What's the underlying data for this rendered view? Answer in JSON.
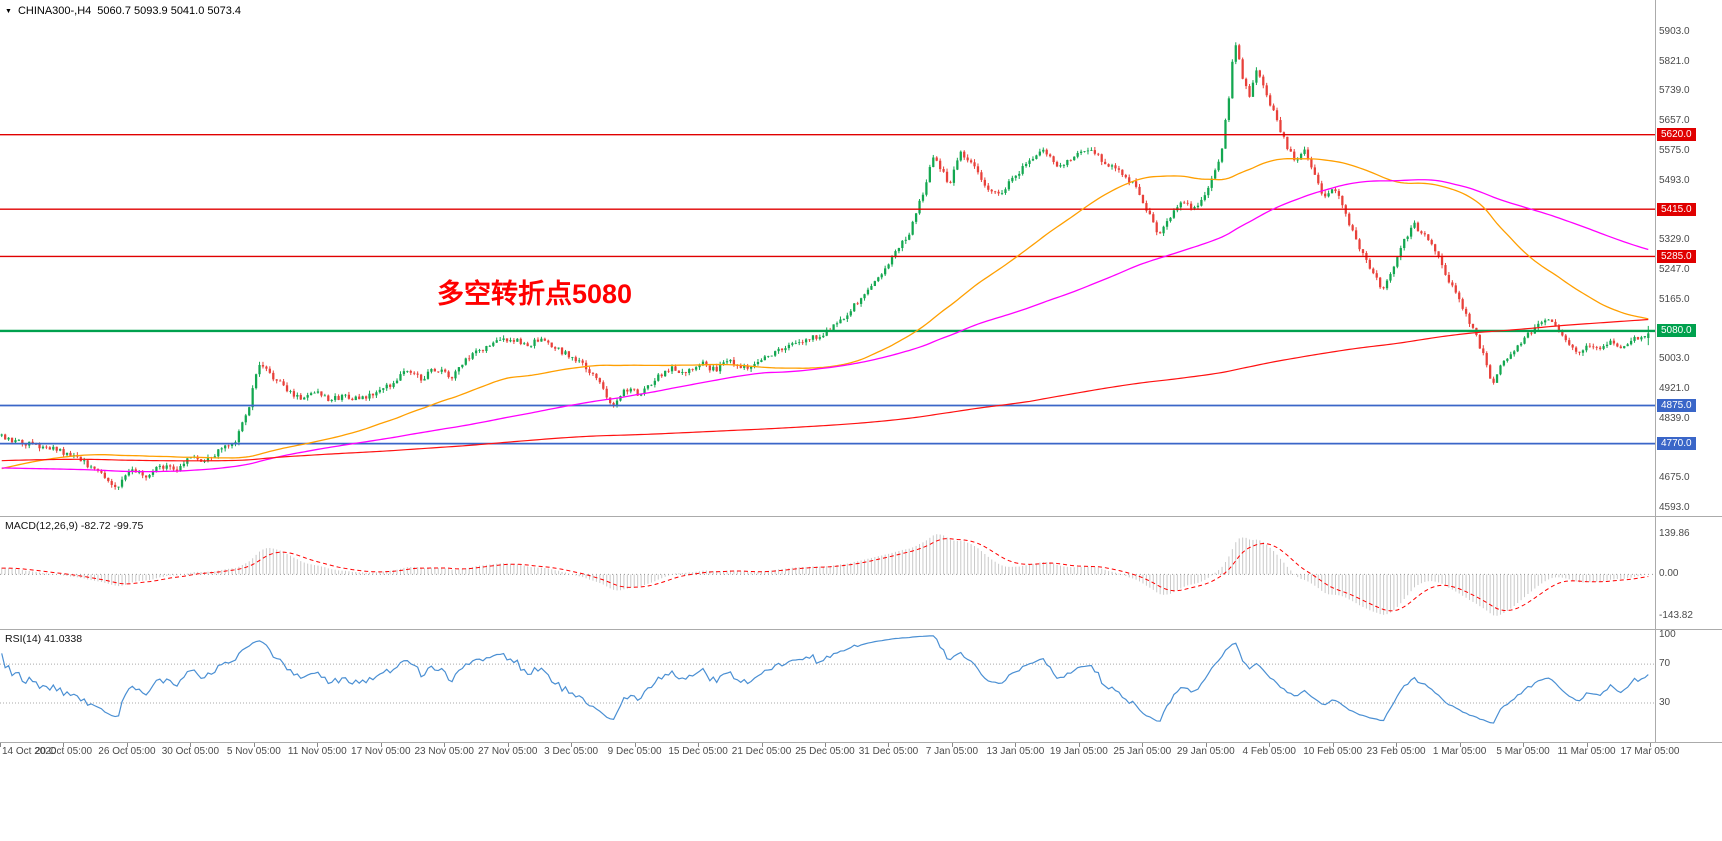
{
  "header": {
    "collapse_icon": "▼",
    "symbol": "CHINA300-,H4",
    "ohlc_line": "5060.7 5093.9 5041.0 5073.4"
  },
  "chart_data": {
    "type": "candlestick",
    "title": "CHINA300- H4 candlestick chart with MACD and RSI panels",
    "symbol": "CHINA300-",
    "timeframe": "H4",
    "last_bar": {
      "open": 5060.7,
      "high": 5093.9,
      "low": 5041.0,
      "close": 5073.4
    },
    "annotation": {
      "text": "多空转折点5080",
      "color": "#ff0000"
    },
    "grid": false,
    "price_axis": {
      "side": "right",
      "min": 4571,
      "max": 5985,
      "tick_labels": [
        "5903.0",
        "5821.0",
        "5739.0",
        "5657.0",
        "5575.0",
        "5493.0",
        "5411.0",
        "5329.0",
        "5247.0",
        "5165.0",
        "5083.0",
        "5003.0",
        "4921.0",
        "4839.0",
        "4757.0",
        "4675.0",
        "4593.0"
      ]
    },
    "horizontal_lines": [
      {
        "value": 5620.0,
        "label": "5620.0",
        "color": "#e00000",
        "width": 1.4
      },
      {
        "value": 5415.0,
        "label": "5415.0",
        "color": "#e00000",
        "width": 1.4
      },
      {
        "value": 5285.0,
        "label": "5285.0",
        "color": "#e00000",
        "width": 1.4
      },
      {
        "value": 5080.0,
        "label": "5080.0",
        "color": "#00a14e",
        "width": 2.4
      },
      {
        "value": 4875.0,
        "label": "4875.0",
        "color": "#3a66c8",
        "width": 1.8
      },
      {
        "value": 4770.0,
        "label": "4770.0",
        "color": "#3a66c8",
        "width": 1.8
      }
    ],
    "time_axis": {
      "labels": [
        "14 Oct 2020",
        "20 Oct 05:00",
        "26 Oct 05:00",
        "30 Oct 05:00",
        "5 Nov 05:00",
        "11 Nov 05:00",
        "17 Nov 05:00",
        "23 Nov 05:00",
        "27 Nov 05:00",
        "3 Dec 05:00",
        "9 Dec 05:00",
        "15 Dec 05:00",
        "21 Dec 05:00",
        "25 Dec 05:00",
        "31 Dec 05:00",
        "7 Jan 05:00",
        "13 Jan 05:00",
        "19 Jan 05:00",
        "25 Jan 05:00",
        "29 Jan 05:00",
        "4 Feb 05:00",
        "10 Feb 05:00",
        "23 Feb 05:00",
        "1 Mar 05:00",
        "5 Mar 05:00",
        "11 Mar 05:00",
        "17 Mar 05:00"
      ]
    },
    "approx_bar_count": 480,
    "price_path": [
      [
        0.0,
        4788
      ],
      [
        0.018,
        4766
      ],
      [
        0.033,
        4753
      ],
      [
        0.048,
        4725
      ],
      [
        0.061,
        4684
      ],
      [
        0.07,
        4648
      ],
      [
        0.079,
        4698
      ],
      [
        0.088,
        4676
      ],
      [
        0.097,
        4711
      ],
      [
        0.106,
        4692
      ],
      [
        0.115,
        4739
      ],
      [
        0.124,
        4720
      ],
      [
        0.133,
        4753
      ],
      [
        0.142,
        4780
      ],
      [
        0.15,
        4870
      ],
      [
        0.156,
        4986
      ],
      [
        0.164,
        4959
      ],
      [
        0.173,
        4917
      ],
      [
        0.182,
        4895
      ],
      [
        0.191,
        4917
      ],
      [
        0.2,
        4890
      ],
      [
        0.209,
        4903
      ],
      [
        0.218,
        4890
      ],
      [
        0.227,
        4909
      ],
      [
        0.236,
        4931
      ],
      [
        0.245,
        4972
      ],
      [
        0.255,
        4950
      ],
      [
        0.264,
        4978
      ],
      [
        0.273,
        4950
      ],
      [
        0.282,
        5000
      ],
      [
        0.291,
        5027
      ],
      [
        0.3,
        5049
      ],
      [
        0.309,
        5060
      ],
      [
        0.318,
        5040
      ],
      [
        0.327,
        5054
      ],
      [
        0.336,
        5032
      ],
      [
        0.345,
        5013
      ],
      [
        0.355,
        4978
      ],
      [
        0.364,
        4931
      ],
      [
        0.371,
        4876
      ],
      [
        0.379,
        4923
      ],
      [
        0.388,
        4903
      ],
      [
        0.397,
        4950
      ],
      [
        0.406,
        4978
      ],
      [
        0.415,
        4967
      ],
      [
        0.424,
        4995
      ],
      [
        0.433,
        4972
      ],
      [
        0.442,
        5000
      ],
      [
        0.452,
        4978
      ],
      [
        0.461,
        5005
      ],
      [
        0.47,
        5022
      ],
      [
        0.479,
        5040
      ],
      [
        0.488,
        5054
      ],
      [
        0.497,
        5068
      ],
      [
        0.506,
        5095
      ],
      [
        0.515,
        5137
      ],
      [
        0.524,
        5178
      ],
      [
        0.533,
        5233
      ],
      [
        0.542,
        5288
      ],
      [
        0.552,
        5357
      ],
      [
        0.561,
        5481
      ],
      [
        0.565,
        5560
      ],
      [
        0.57,
        5531
      ],
      [
        0.576,
        5481
      ],
      [
        0.582,
        5577
      ],
      [
        0.588,
        5545
      ],
      [
        0.597,
        5481
      ],
      [
        0.606,
        5453
      ],
      [
        0.615,
        5508
      ],
      [
        0.624,
        5545
      ],
      [
        0.633,
        5577
      ],
      [
        0.642,
        5531
      ],
      [
        0.652,
        5563
      ],
      [
        0.661,
        5582
      ],
      [
        0.67,
        5545
      ],
      [
        0.679,
        5522
      ],
      [
        0.688,
        5481
      ],
      [
        0.697,
        5399
      ],
      [
        0.703,
        5343
      ],
      [
        0.71,
        5399
      ],
      [
        0.718,
        5440
      ],
      [
        0.725,
        5413
      ],
      [
        0.733,
        5481
      ],
      [
        0.741,
        5577
      ],
      [
        0.745,
        5714
      ],
      [
        0.749,
        5885
      ],
      [
        0.753,
        5783
      ],
      [
        0.758,
        5728
      ],
      [
        0.762,
        5796
      ],
      [
        0.767,
        5741
      ],
      [
        0.773,
        5673
      ],
      [
        0.779,
        5604
      ],
      [
        0.785,
        5545
      ],
      [
        0.791,
        5577
      ],
      [
        0.797,
        5508
      ],
      [
        0.803,
        5453
      ],
      [
        0.809,
        5481
      ],
      [
        0.815,
        5413
      ],
      [
        0.821,
        5343
      ],
      [
        0.827,
        5288
      ],
      [
        0.833,
        5233
      ],
      [
        0.839,
        5192
      ],
      [
        0.845,
        5247
      ],
      [
        0.852,
        5329
      ],
      [
        0.858,
        5371
      ],
      [
        0.864,
        5343
      ],
      [
        0.87,
        5302
      ],
      [
        0.876,
        5247
      ],
      [
        0.882,
        5192
      ],
      [
        0.888,
        5137
      ],
      [
        0.894,
        5082
      ],
      [
        0.9,
        5013
      ],
      [
        0.905,
        4931
      ],
      [
        0.909,
        4972
      ],
      [
        0.915,
        5013
      ],
      [
        0.921,
        5040
      ],
      [
        0.927,
        5068
      ],
      [
        0.933,
        5103
      ],
      [
        0.939,
        5114
      ],
      [
        0.945,
        5082
      ],
      [
        0.952,
        5040
      ],
      [
        0.958,
        5022
      ],
      [
        0.964,
        5040
      ],
      [
        0.97,
        5027
      ],
      [
        0.976,
        5049
      ],
      [
        0.982,
        5032
      ],
      [
        0.989,
        5054
      ],
      [
        0.997,
        5062
      ],
      [
        1.0,
        5073
      ]
    ],
    "warmup_path": [
      [
        -0.42,
        4690
      ],
      [
        -0.34,
        4840
      ],
      [
        -0.26,
        4760
      ],
      [
        -0.17,
        4592
      ],
      [
        -0.1,
        4680
      ],
      [
        -0.05,
        4730
      ]
    ],
    "moving_averages": [
      {
        "name": "ma-orange",
        "period": 75,
        "color": "#ff9f00",
        "width": 1.3
      },
      {
        "name": "ma-magenta",
        "period": 150,
        "color": "#ff00ff",
        "width": 1.3
      },
      {
        "name": "ma-red",
        "period": 500,
        "color": "#ff1111",
        "width": 1.2
      }
    ],
    "colors": {
      "up": "#13a750",
      "down": "#e8403a",
      "macd_hist": "#c9c9c9",
      "macd_signal": "#ff0000",
      "rsi": "#4a8fd3",
      "divider": "#ababab"
    },
    "indicators": {
      "macd": {
        "label": "MACD(12,26,9) -82.72 -99.75",
        "fast": 12,
        "slow": 26,
        "signal": 9,
        "value": -82.72,
        "signal_value": -99.75,
        "axis_max": 139.86,
        "axis_min": -143.82,
        "axis_labels": [
          "139.86",
          "0.00",
          "-143.82"
        ]
      },
      "rsi": {
        "label": "RSI(14) 41.0338",
        "period": 14,
        "value": 41.0338,
        "levels": [
          70,
          30
        ],
        "axis_labels": [
          "100",
          "70",
          "30"
        ]
      }
    }
  }
}
